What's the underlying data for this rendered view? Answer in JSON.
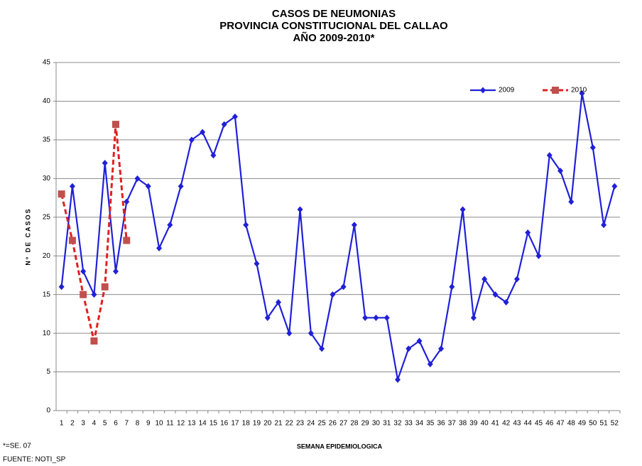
{
  "chart_data": {
    "type": "line",
    "title": [
      "CASOS DE NEUMONIAS",
      "PROVINCIA CONSTITUCIONAL DEL CALLAO",
      "AÑO 2009-2010*"
    ],
    "xlabel": "SEMANA EPIDEMIOLOGICA",
    "ylabel": "Nº DE CASOS",
    "notes": [
      "*=SE. 07",
      "FUENTE: NOTI_SP"
    ],
    "categories": [
      "1",
      "2",
      "3",
      "4",
      "5",
      "6",
      "7",
      "8",
      "9",
      "10",
      "11",
      "12",
      "13",
      "14",
      "15",
      "16",
      "17",
      "18",
      "19",
      "20",
      "21",
      "22",
      "23",
      "24",
      "25",
      "26",
      "27",
      "28",
      "29",
      "30",
      "31",
      "32",
      "33",
      "34",
      "35",
      "36",
      "37",
      "38",
      "39",
      "40",
      "41",
      "42",
      "43",
      "44",
      "45",
      "46",
      "47",
      "48",
      "49",
      "50",
      "51",
      "52"
    ],
    "series": [
      {
        "name": "2009",
        "color": "#2020d8",
        "marker": "diamond",
        "dash": false,
        "values": [
          16,
          29,
          18,
          15,
          32,
          18,
          27,
          30,
          29,
          21,
          24,
          29,
          35,
          36,
          33,
          37,
          38,
          24,
          19,
          12,
          14,
          10,
          26,
          10,
          8,
          15,
          16,
          24,
          12,
          12,
          12,
          4,
          8,
          9,
          6,
          8,
          16,
          26,
          12,
          17,
          15,
          14,
          17,
          23,
          20,
          33,
          31,
          27,
          41,
          34,
          24,
          29
        ]
      },
      {
        "name": "2010",
        "color": "#e02020",
        "marker_color": "#c0504d",
        "marker": "square",
        "dash": true,
        "values": [
          28,
          22,
          15,
          9,
          16,
          37,
          22,
          null,
          null,
          null,
          null,
          null,
          null,
          null,
          null,
          null,
          null,
          null,
          null,
          null,
          null,
          null,
          null,
          null,
          null,
          null,
          null,
          null,
          null,
          null,
          null,
          null,
          null,
          null,
          null,
          null,
          null,
          null,
          null,
          null,
          null,
          null,
          null,
          null,
          null,
          null,
          null,
          null,
          null,
          null,
          null,
          null
        ]
      }
    ],
    "ylim": [
      0,
      45
    ],
    "yticks": [
      0,
      5,
      10,
      15,
      20,
      25,
      30,
      35,
      40,
      45
    ],
    "grid": true,
    "legend": "top-right"
  }
}
